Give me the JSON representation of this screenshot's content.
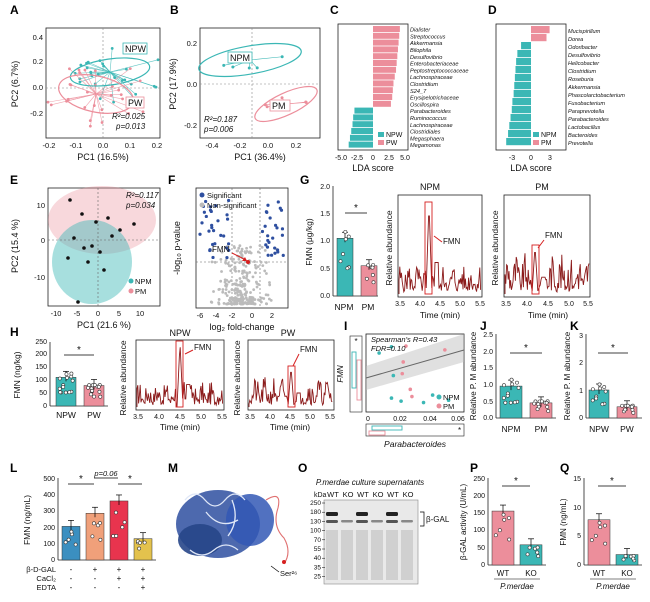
{
  "panels": {
    "A": {
      "label": "A",
      "xlabel": "PC1 (16.5%)",
      "ylabel": "PC2 (6.7%)",
      "stats_r": "R²=0.025",
      "stats_p": "p=0.013",
      "groups": [
        "NPW",
        "PW"
      ],
      "xticks": [
        "-0.2",
        "-0.1",
        "0.0",
        "0.1",
        "0.2"
      ],
      "yticks": [
        "0.4",
        "0.2",
        "0.0",
        "-0.2"
      ]
    },
    "B": {
      "label": "B",
      "xlabel": "PC1 (36.4%)",
      "ylabel": "PC2 (17.9%)",
      "stats_r": "R²=0.187",
      "stats_p": "p=0.006",
      "groups": [
        "NPM",
        "PM"
      ],
      "xticks": [
        "-0.4",
        "-0.2",
        "0.0",
        "0.2"
      ],
      "yticks": [
        "0.2",
        "0.0",
        "-0.2"
      ]
    },
    "C": {
      "label": "C",
      "xlabel": "LDA score",
      "xticks": [
        "-5.0",
        "-2.5",
        "0",
        "2.5",
        "5.0"
      ],
      "legend": [
        "NPW",
        "PW"
      ],
      "taxa": [
        "Dialister",
        "Streptococcus",
        "Akkermansia",
        "Bilophila",
        "Desulfovibrio",
        "Enterobacteriaceae",
        "Peptostreptococcaceae",
        "Lachnospiraceae",
        "Clostridium",
        "S24_7",
        "Erysipelotrichaceae",
        "Oscillospira",
        "Parabacteroides",
        "Ruminococcus",
        "Lachnospiraceae",
        "Clostridiales",
        "Megasphaera",
        "Megamonas"
      ],
      "values": [
        4.2,
        4.1,
        4.0,
        3.9,
        3.8,
        3.7,
        3.6,
        3.4,
        3.2,
        3.1,
        3.0,
        2.8,
        -2.9,
        -3.1,
        -3.2,
        -3.4,
        -3.6,
        -3.8
      ]
    },
    "D": {
      "label": "D",
      "xlabel": "LDA score",
      "xticks": [
        "-3",
        "0",
        "3"
      ],
      "legend": [
        "NPM",
        "PM"
      ],
      "taxa": [
        "Mucispirillum",
        "Dorea",
        "Odoribacter",
        "Desulfovibrio",
        "Helicobacter",
        "Clostridium",
        "Roseburia",
        "Akkermansia",
        "Phascolarctobacterium",
        "Fusobacterium",
        "Paraprevotella",
        "Parabacteroides",
        "Lactobacillus",
        "Bacteroides",
        "Prevotella"
      ],
      "values": [
        3.0,
        2.5,
        -1.6,
        -2.2,
        -2.4,
        -2.5,
        -2.6,
        -2.7,
        -2.8,
        -3.0,
        -3.1,
        -3.3,
        -3.5,
        -3.7,
        -4.0
      ]
    },
    "E": {
      "label": "E",
      "xlabel": "PC1 (21.6 %)",
      "ylabel": "PC2 (15.4 %)",
      "stats_r": "R²=0.117",
      "stats_p": "p=0.034",
      "groups": [
        "NPM",
        "PM"
      ],
      "xticks": [
        "-10",
        "-5",
        "0",
        "5",
        "10"
      ],
      "yticks": [
        "10",
        "0",
        "-10"
      ]
    },
    "F": {
      "label": "F",
      "xlabel": "log₂ fold-change",
      "ylabel": "-log₁₀ p-value",
      "legend": [
        "Significant",
        "Non-significant"
      ],
      "highlight": "FMN",
      "xticks": [
        "-6",
        "-4",
        "-2",
        "0",
        "2"
      ]
    },
    "G": {
      "label": "G",
      "bar_ylabel": "FMN (μg/kg)",
      "groups": [
        "NPM",
        "PM"
      ],
      "means": [
        1.05,
        0.55
      ],
      "yticks": [
        "0.0",
        "0.5",
        "1.0",
        "1.5",
        "2.0"
      ],
      "sig": "*",
      "chrom_titles": [
        "NPM",
        "PM"
      ],
      "chrom_ylabel": "Relative abundance",
      "chrom_xlabel": "Time (min)",
      "xticks": [
        "3.5",
        "4.0",
        "4.5",
        "5.0",
        "5.5"
      ],
      "peak": "FMN"
    },
    "H": {
      "label": "H",
      "bar_ylabel": "FMN (ng/kg)",
      "groups": [
        "NPW",
        "PW"
      ],
      "means": [
        112,
        80
      ],
      "yticks": [
        "0",
        "50",
        "100",
        "150",
        "200",
        "250"
      ],
      "sig": "*",
      "chrom_titles": [
        "NPW",
        "PW"
      ],
      "chrom_ylabel": "Relative abundance",
      "chrom_xlabel": "Time (min)",
      "xticks": [
        "3.5",
        "4.0",
        "4.5",
        "5.0",
        "5.5"
      ],
      "peak": "FMN"
    },
    "I": {
      "label": "I",
      "stats_r": "Spearman's R=0.43",
      "stats_fdr": "FDR=0.10",
      "xlabel": "Parabacteroides",
      "ylabel": "FMN",
      "xticks": [
        "0",
        "0.02",
        "0.04",
        "0.06"
      ],
      "yticks": [
        "7.5",
        "7.0",
        "6.5",
        "6.0"
      ],
      "legend": [
        "NPM",
        "PM"
      ],
      "sig": "*"
    },
    "J": {
      "label": "J",
      "ylabel": "Relative P. M abundance",
      "groups": [
        "NPM",
        "PM"
      ],
      "means": [
        0.95,
        0.45
      ],
      "yticks": [
        "0.0",
        "0.5",
        "1.0",
        "1.5",
        "2.0",
        "2.5"
      ],
      "sig": "*"
    },
    "K": {
      "label": "K",
      "ylabel": "Relative P. M abundance",
      "groups": [
        "NPW",
        "PW"
      ],
      "means": [
        1.0,
        0.4
      ],
      "yticks": [
        "0",
        "1",
        "2",
        "3"
      ],
      "sig": "*"
    },
    "L": {
      "label": "L",
      "ylabel": "FMN (ng/mL)",
      "yticks": [
        "0",
        "100",
        "200",
        "300",
        "400",
        "500"
      ],
      "means": [
        205,
        285,
        360,
        130
      ],
      "pval": "p=0.06",
      "sig": "*",
      "conds": [
        "β-D-GAL",
        "CaCl₂",
        "EDTA"
      ],
      "signs": [
        [
          "-",
          "+",
          "+",
          "+"
        ],
        [
          "-",
          "-",
          "+",
          "+"
        ],
        [
          "-",
          "-",
          "-",
          "+"
        ]
      ],
      "colors": [
        "#3b8fc0",
        "#f0a07a",
        "#e8344e",
        "#e3c24d"
      ]
    },
    "M": {
      "label": "M",
      "site": "Ser²⁶"
    },
    "O": {
      "label": "O",
      "title": "P.merdae culture supernatants",
      "lanes": [
        "WT",
        "KO",
        "WT",
        "KO",
        "WT",
        "KO"
      ],
      "kda": "kDa",
      "markers": [
        "250",
        "180",
        "130",
        "100",
        "70",
        "55",
        "40",
        "35",
        "25"
      ],
      "band": "β-GAL"
    },
    "P": {
      "label": "P",
      "ylabel": "β-GAL activity (U/mL)",
      "groups": [
        "WT",
        "KO"
      ],
      "means": [
        155,
        58
      ],
      "yticks": [
        "0",
        "50",
        "100",
        "150",
        "200",
        "250"
      ],
      "sig": "*",
      "strain": "P.merdae"
    },
    "Q": {
      "label": "Q",
      "ylabel": "FMN (ng/mL)",
      "groups": [
        "WT",
        "KO"
      ],
      "means": [
        7.8,
        1.8
      ],
      "yticks": [
        "0",
        "5",
        "10",
        "15"
      ],
      "sig": "*",
      "strain": "P.merdae"
    }
  },
  "colors": {
    "teal": "#3bb7b5",
    "pink": "#ec8e9b",
    "blue": "#2e4fa0",
    "grey": "#bbbbbb",
    "red": "#d62020"
  }
}
